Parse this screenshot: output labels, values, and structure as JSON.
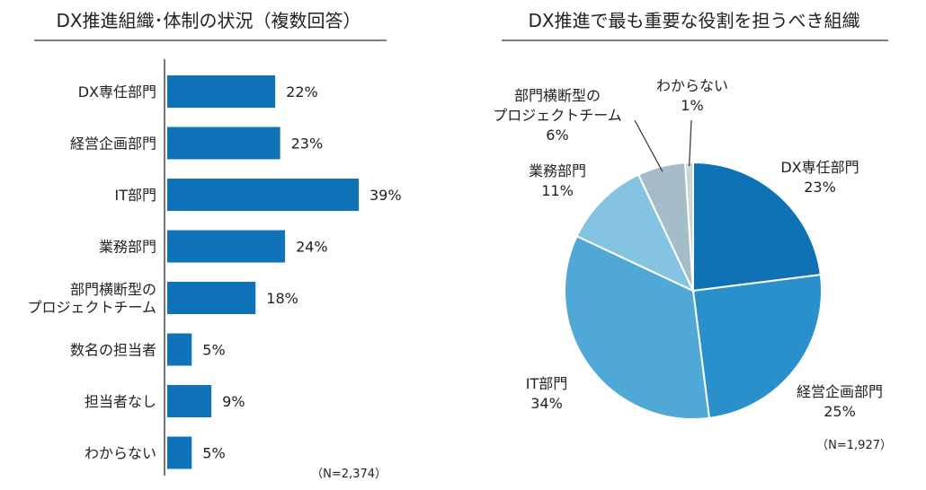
{
  "chart_data": [
    {
      "type": "bar",
      "orientation": "horizontal",
      "title": "DX推進組織･体制の状況（複数回答）",
      "categories": [
        "DX専任部門",
        "経営企画部門",
        "IT部門",
        "業務部門",
        "部門横断型の\nプロジェクトチーム",
        "数名の担当者",
        "担当者なし",
        "わからない"
      ],
      "values": [
        22,
        23,
        39,
        24,
        18,
        5,
        9,
        5
      ],
      "value_labels": [
        "22%",
        "23%",
        "39%",
        "24%",
        "18%",
        "5%",
        "9%",
        "5%"
      ],
      "unit": "%",
      "xlim": [
        0,
        39
      ],
      "note": "（N=2,374）",
      "color": "#1073b8"
    },
    {
      "type": "pie",
      "title": "DX推進で最も重要な役割を担うべき組織",
      "slices": [
        {
          "label": "DX専任部門",
          "value": 23,
          "value_label": "23%",
          "color": "#0e72b5"
        },
        {
          "label": "経営企画部門",
          "value": 25,
          "value_label": "25%",
          "color": "#2a90cc"
        },
        {
          "label": "IT部門",
          "value": 34,
          "value_label": "34%",
          "color": "#4fa8d6"
        },
        {
          "label": "業務部門",
          "value": 11,
          "value_label": "11%",
          "color": "#85c3e3"
        },
        {
          "label": "部門横断型の\nプロジェクトチーム",
          "value": 6,
          "value_label": "6%",
          "color": "#a4bdc9"
        },
        {
          "label": "わからない",
          "value": 1,
          "value_label": "1%",
          "color": "#c9d6dd"
        }
      ],
      "note": "（N=1,927）"
    }
  ]
}
